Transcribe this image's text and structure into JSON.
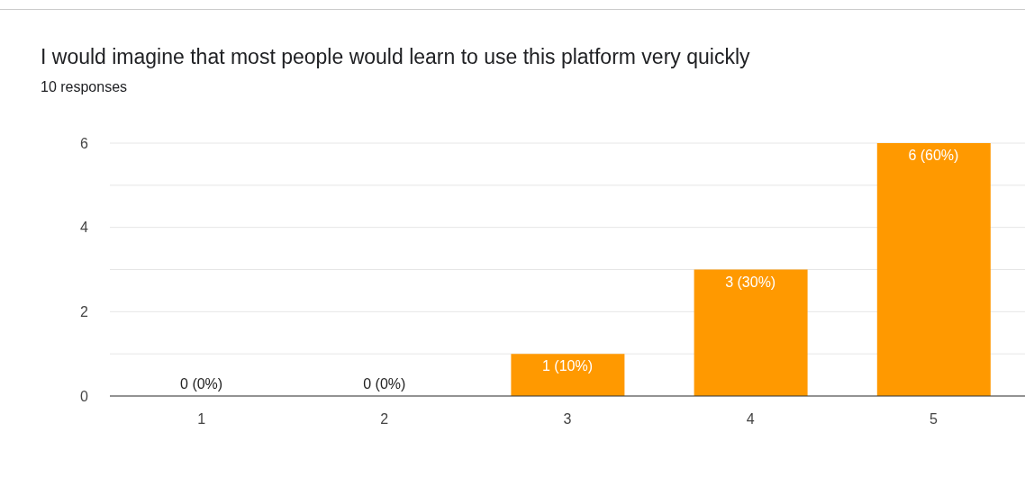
{
  "chart_data": {
    "type": "bar",
    "title": "I would imagine that most people would learn to use this platform very quickly",
    "subtitle": "10 responses",
    "categories": [
      "1",
      "2",
      "3",
      "4",
      "5"
    ],
    "values": [
      0,
      0,
      1,
      3,
      6
    ],
    "value_labels": [
      "0 (0%)",
      "0 (0%)",
      "1 (10%)",
      "3 (30%)",
      "6 (60%)"
    ],
    "color": "#ff9900",
    "ylim": [
      0,
      6
    ],
    "yticks": [
      0,
      {
        "value": 1,
        "label": null
      },
      2,
      {
        "value": 3,
        "label": null
      },
      4,
      {
        "value": 5,
        "label": null
      },
      6
    ],
    "grid": "y"
  }
}
